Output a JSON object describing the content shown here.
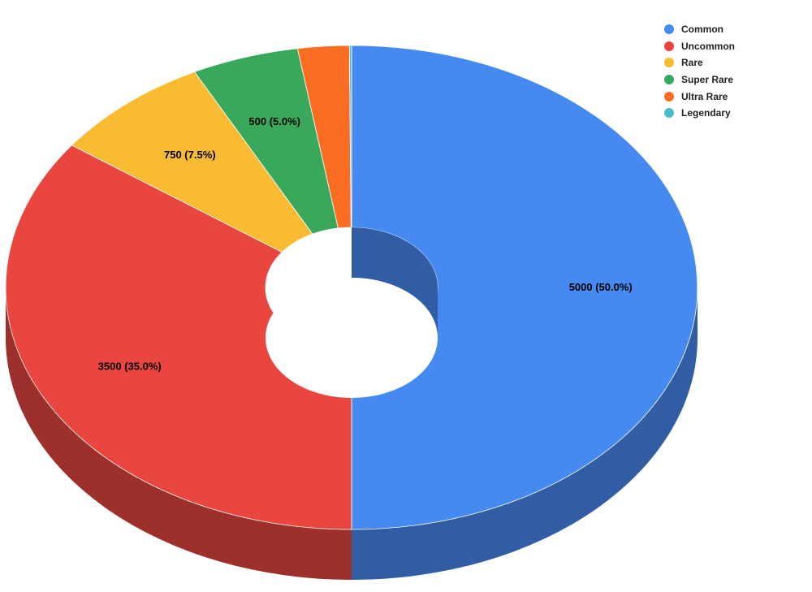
{
  "chart_data": {
    "type": "pie",
    "style": "3d-donut",
    "legend": "top-right",
    "slices": [
      {
        "name": "Common",
        "value": 5000,
        "label": "5000 (50.0%)",
        "color": "#4689F0"
      },
      {
        "name": "Uncommon",
        "value": 3500,
        "label": "3500 (35.0%)",
        "color": "#E8463F"
      },
      {
        "name": "Rare",
        "value": 750,
        "label": "750 (7.5%)",
        "color": "#F8BB31"
      },
      {
        "name": "Super Rare",
        "value": 500,
        "label": "500 (5.0%)",
        "color": "#3AA85A"
      },
      {
        "name": "Ultra Rare",
        "value": 240,
        "label": "",
        "color": "#FC6D24"
      },
      {
        "name": "Legendary",
        "value": 10,
        "label": "",
        "color": "#4BBAC6"
      }
    ]
  }
}
